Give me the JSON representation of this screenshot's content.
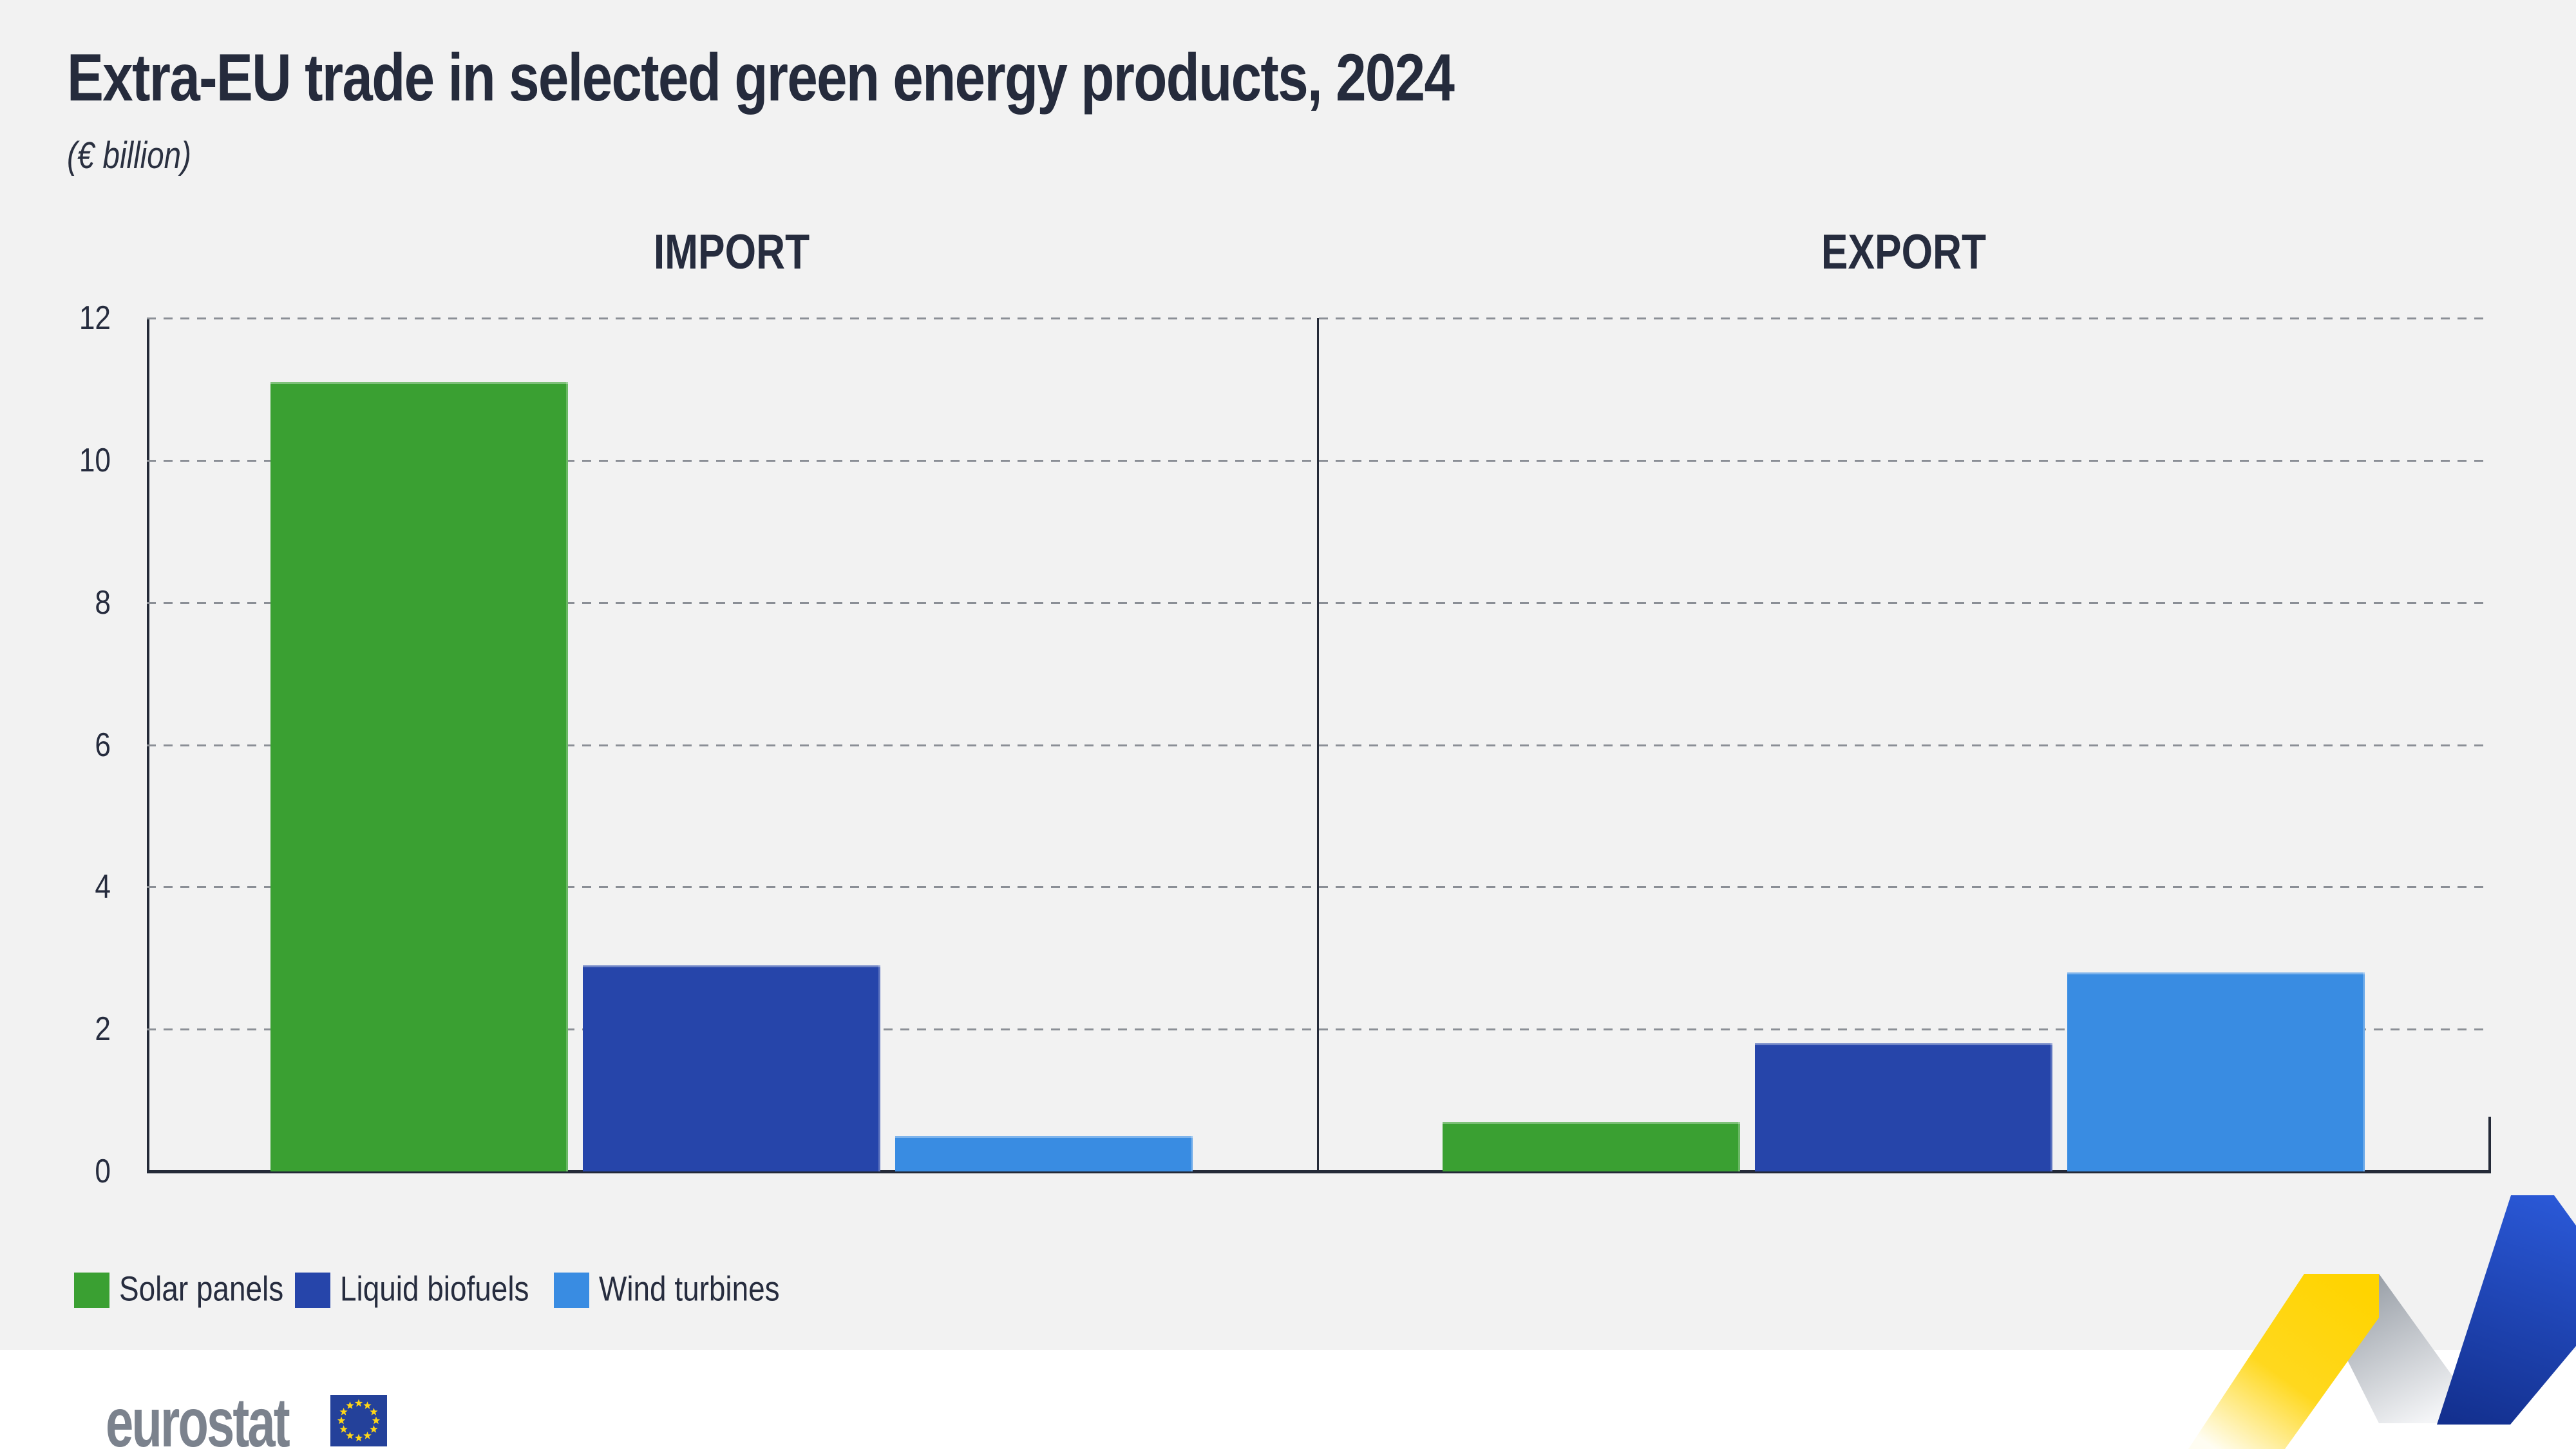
{
  "title": "Extra-EU trade in selected green energy products, 2024",
  "subtitle": "(€ billion)",
  "panels": [
    {
      "label": "IMPORT"
    },
    {
      "label": "EXPORT"
    }
  ],
  "chart_data": {
    "type": "bar",
    "title": "Extra-EU trade in selected green energy products, 2024",
    "unit": "€ billion",
    "categories": [
      "Solar panels",
      "Liquid biofuels",
      "Wind turbines"
    ],
    "series": [
      {
        "name": "IMPORT",
        "values": [
          11.1,
          2.9,
          0.5
        ]
      },
      {
        "name": "EXPORT",
        "values": [
          0.7,
          1.8,
          2.8
        ]
      }
    ],
    "ylim": [
      0,
      12
    ],
    "yticks": [
      0,
      2,
      4,
      6,
      8,
      10,
      12
    ],
    "grid": "horizontal-dashed",
    "legend_position": "bottom-left",
    "colors": {
      "Solar panels": "#3aa032",
      "Liquid biofuels": "#2645aa",
      "Wind turbines": "#398ce2"
    }
  },
  "legend": [
    {
      "label": "Solar panels",
      "color": "#3aa032"
    },
    {
      "label": "Liquid biofuels",
      "color": "#2645aa"
    },
    {
      "label": "Wind turbines",
      "color": "#398ce2"
    }
  ],
  "footer": {
    "brand": "eurostat"
  },
  "style_colors": {
    "background": "#f2f2f2",
    "footer_background": "#ffffff",
    "axis": "#242a38",
    "grid": "#8b8f96",
    "text": "#262c3e",
    "logo_gray": "#7b828d",
    "flag_blue": "#24419a",
    "star_yellow": "#ffd617",
    "ribbon_yellow": "#ffd400",
    "ribbon_blue": "#1d4ed0",
    "ribbon_gray": "#8e959e"
  }
}
